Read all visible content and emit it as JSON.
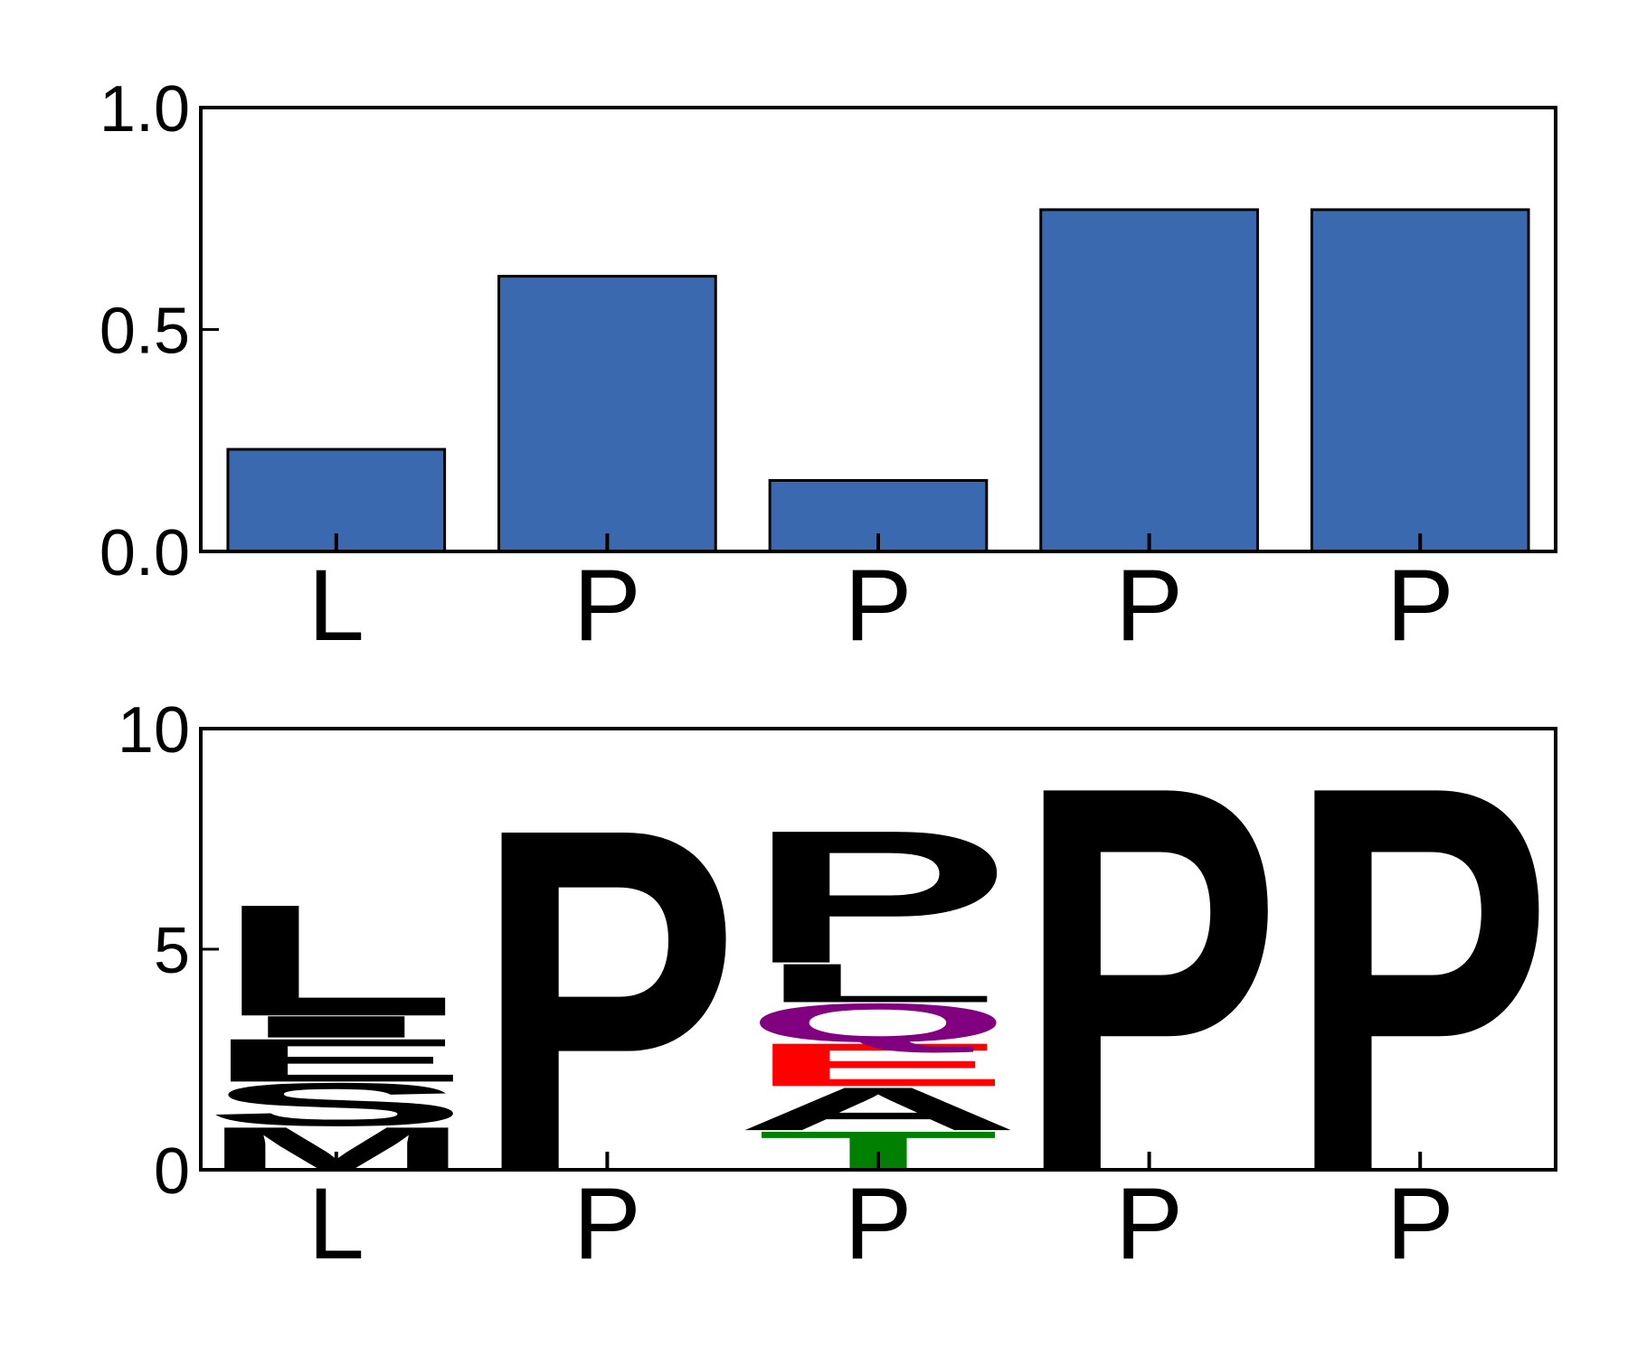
{
  "chart_data": [
    {
      "type": "bar",
      "categories": [
        "L",
        "P",
        "P",
        "P",
        "P"
      ],
      "values": [
        0.23,
        0.62,
        0.16,
        0.77,
        0.77
      ],
      "ylim": [
        0,
        1.0
      ],
      "yticks": [
        "0.0",
        "0.5",
        "1.0"
      ],
      "title": "",
      "xlabel": "",
      "ylabel": "",
      "grid": false,
      "colors": {
        "bar": "#3a69b0",
        "edge": "#000000"
      }
    },
    {
      "type": "sequence-logo",
      "categories": [
        "L",
        "P",
        "P",
        "P",
        "P"
      ],
      "ylim": [
        0,
        10
      ],
      "yticks": [
        "0",
        "5",
        "10"
      ],
      "title": "",
      "xlabel": "",
      "ylabel": "",
      "grid": false,
      "stacks": [
        [
          {
            "letter": "M",
            "height": 1.0,
            "color": "#000000"
          },
          {
            "letter": "S",
            "height": 1.0,
            "color": "#000000"
          },
          {
            "letter": "E",
            "height": 1.0,
            "color": "#000000"
          },
          {
            "letter": "I",
            "height": 0.5,
            "color": "#000000"
          },
          {
            "letter": "L",
            "height": 2.6,
            "color": "#000000"
          }
        ],
        [
          {
            "letter": "P",
            "height": 8.0,
            "color": "#000000"
          }
        ],
        [
          {
            "letter": "T",
            "height": 0.9,
            "color": "#008000"
          },
          {
            "letter": "A",
            "height": 1.0,
            "color": "#000000"
          },
          {
            "letter": "E",
            "height": 1.0,
            "color": "#ff0000"
          },
          {
            "letter": "Q",
            "height": 0.9,
            "color": "#800080"
          },
          {
            "letter": "L",
            "height": 0.9,
            "color": "#000000"
          },
          {
            "letter": "P",
            "height": 3.1,
            "color": "#000000"
          }
        ],
        [
          {
            "letter": "P",
            "height": 9.0,
            "color": "#000000"
          }
        ],
        [
          {
            "letter": "P",
            "height": 9.0,
            "color": "#000000"
          }
        ]
      ]
    }
  ]
}
